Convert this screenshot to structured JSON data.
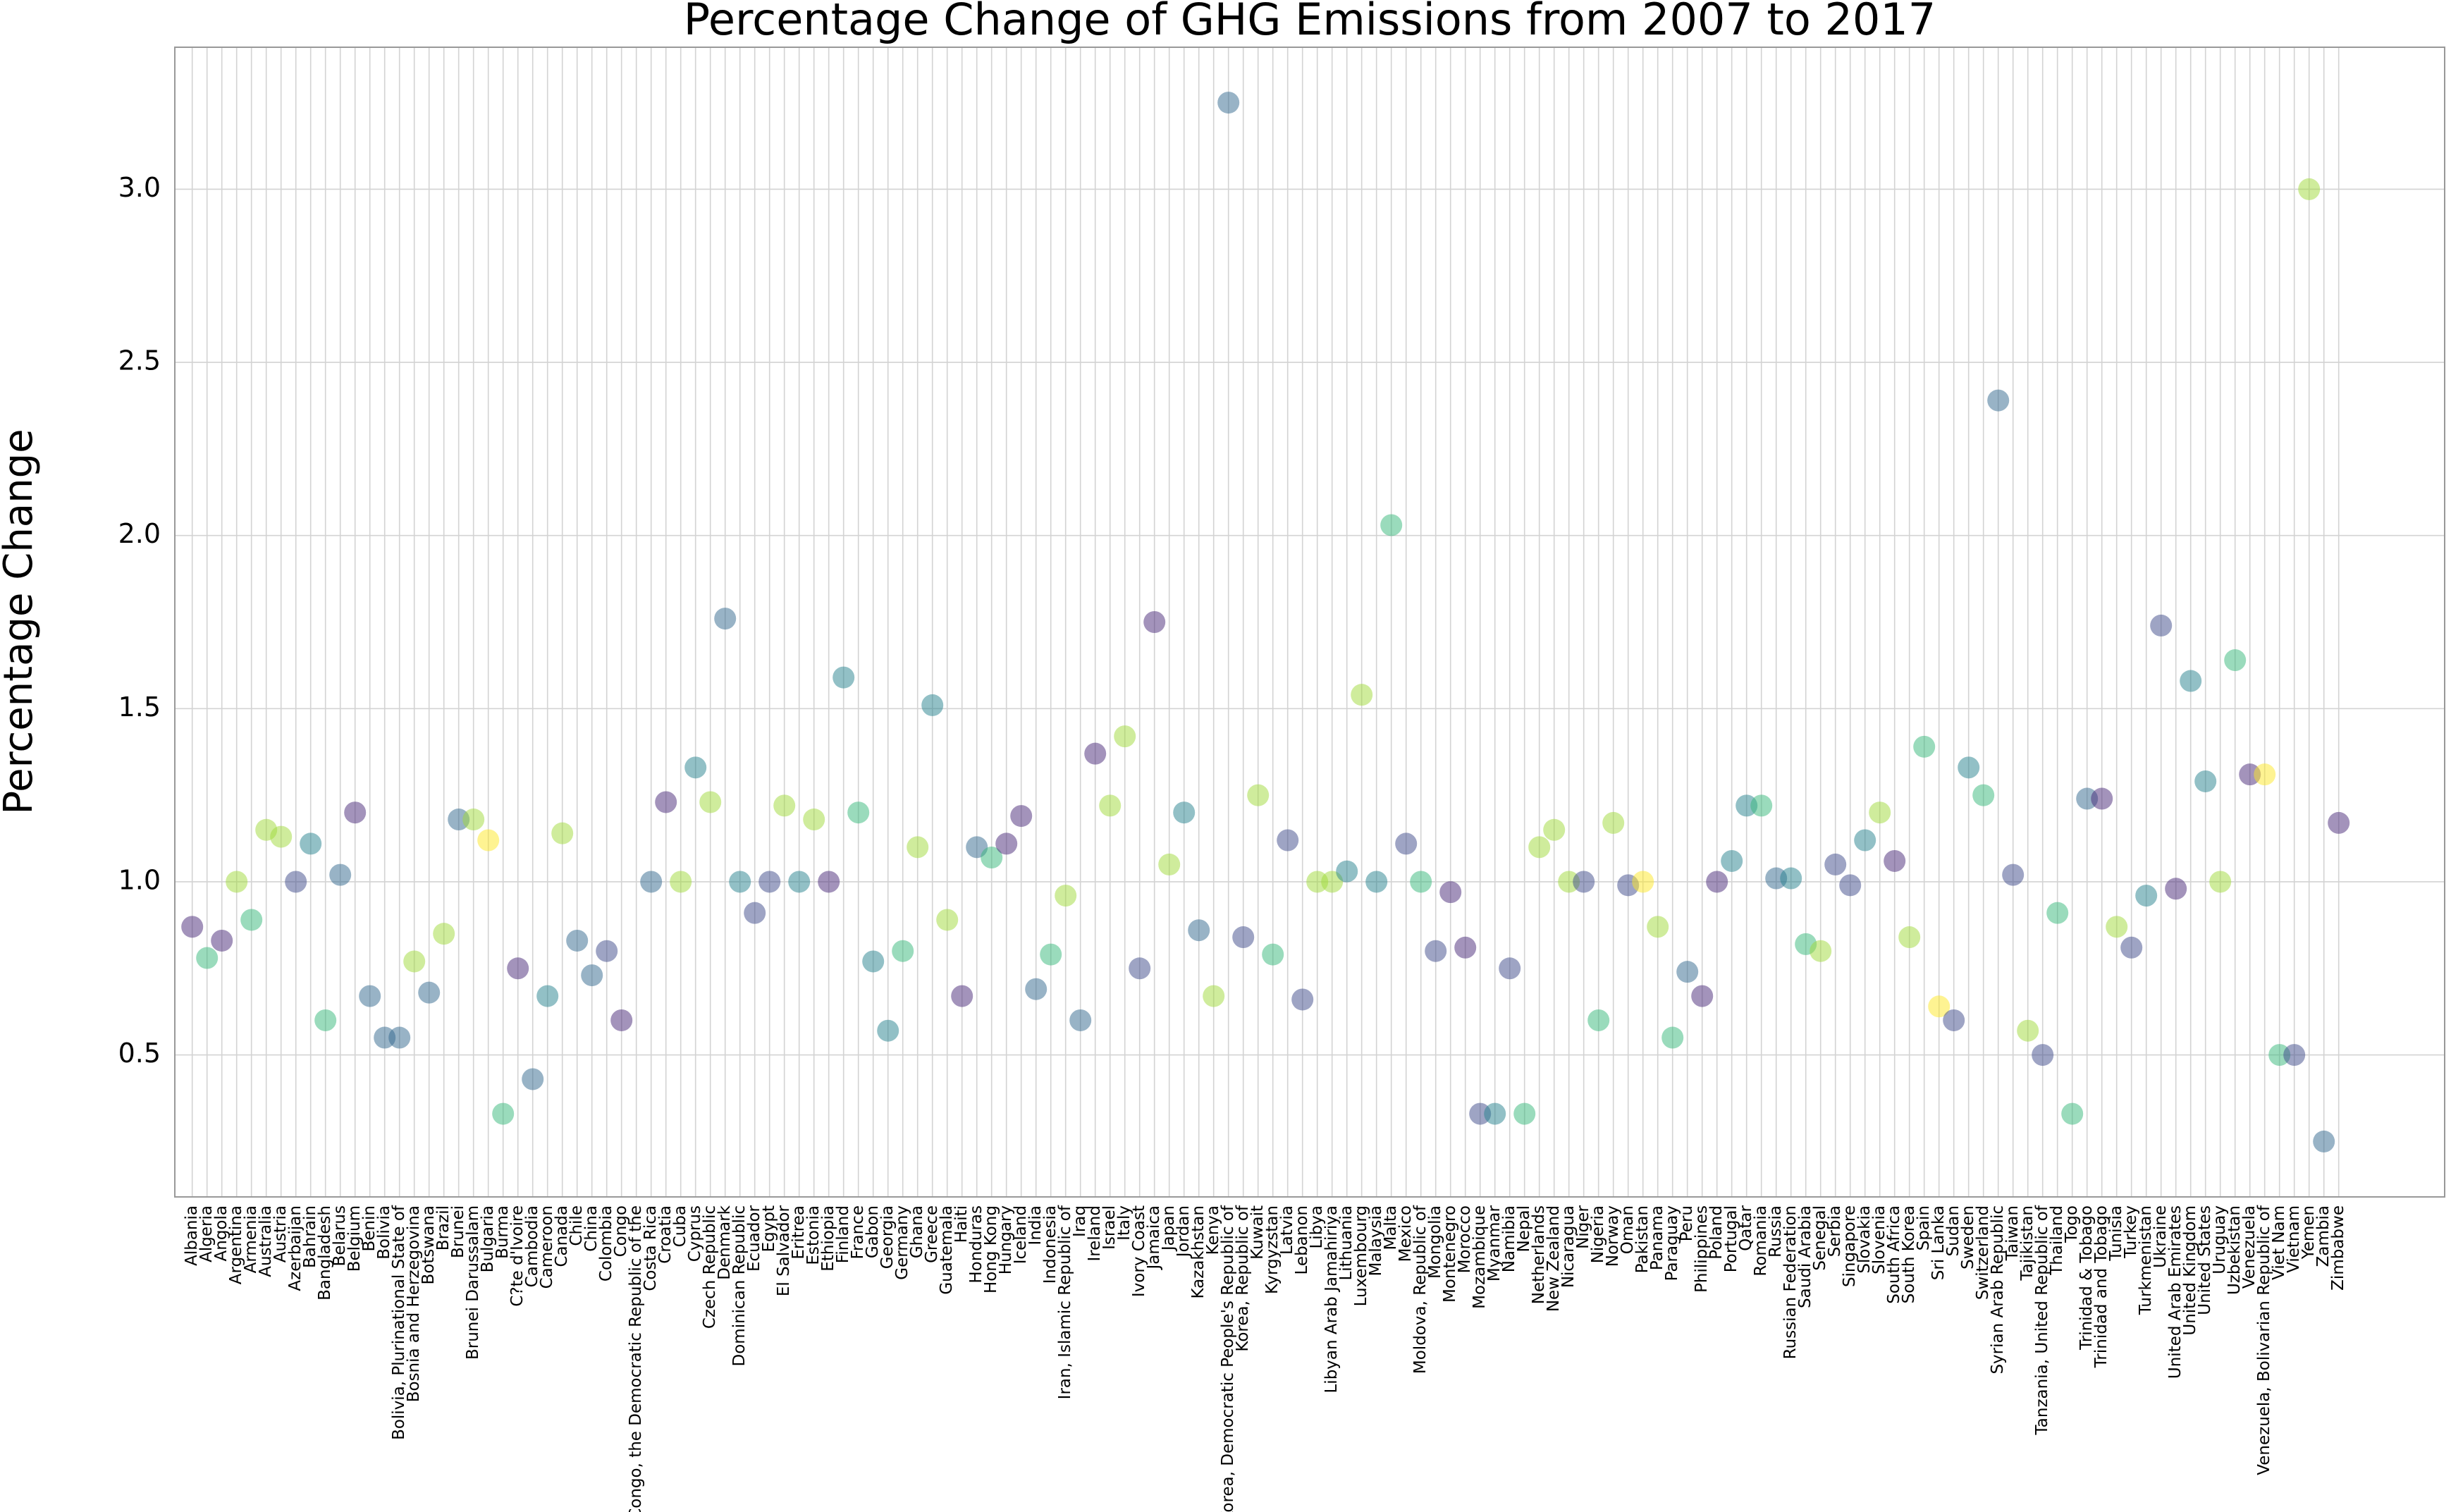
{
  "chart_data": {
    "type": "scatter",
    "title": "Percentage Change of GHG Emissions from 2007 to 2017",
    "y_label": "Percentage Change",
    "categories": [
      "Albania",
      "Algeria",
      "Angola",
      "Argentina",
      "Armenia",
      "Australia",
      "Austria",
      "Azerbaijan",
      "Bahrain",
      "Bangladesh",
      "Belarus",
      "Belgium",
      "Benin",
      "Bolivia",
      "Bolivia, Plurinational State of",
      "Bosnia and Herzegovina",
      "Botswana",
      "Brazil",
      "Brunei",
      "Brunei Darussalam",
      "Bulgaria",
      "Burma",
      "C?te d'Ivoire",
      "Cambodia",
      "Cameroon",
      "Canada",
      "Chile",
      "China",
      "Colombia",
      "Congo",
      "Congo, the Democratic Republic of the",
      "Costa Rica",
      "Croatia",
      "Cuba",
      "Cyprus",
      "Czech Republic",
      "Denmark",
      "Dominican Republic",
      "Ecuador",
      "Egypt",
      "El Salvador",
      "Eritrea",
      "Estonia",
      "Ethiopia",
      "Finland",
      "France",
      "Gabon",
      "Georgia",
      "Germany",
      "Ghana",
      "Greece",
      "Guatemala",
      "Haiti",
      "Honduras",
      "Hong Kong",
      "Hungary",
      "Iceland",
      "India",
      "Indonesia",
      "Iran, Islamic Republic of",
      "Iraq",
      "Ireland",
      "Israel",
      "Italy",
      "Ivory Coast",
      "Jamaica",
      "Japan",
      "Jordan",
      "Kazakhstan",
      "Kenya",
      "Korea, Democratic People's Republic of",
      "Korea, Republic of",
      "Kuwait",
      "Kyrgyzstan",
      "Latvia",
      "Lebanon",
      "Libya",
      "Libyan Arab Jamahiriya",
      "Lithuania",
      "Luxembourg",
      "Malaysia",
      "Malta",
      "Mexico",
      "Moldova, Republic of",
      "Mongolia",
      "Montenegro",
      "Morocco",
      "Mozambique",
      "Myanmar",
      "Namibia",
      "Nepal",
      "Netherlands",
      "New Zealand",
      "Nicaragua",
      "Niger",
      "Nigeria",
      "Norway",
      "Oman",
      "Pakistan",
      "Panama",
      "Paraguay",
      "Peru",
      "Philippines",
      "Poland",
      "Portugal",
      "Qatar",
      "Romania",
      "Russia",
      "Russian Federation",
      "Saudi Arabia",
      "Senegal",
      "Serbia",
      "Singapore",
      "Slovakia",
      "Slovenia",
      "South Africa",
      "South Korea",
      "Spain",
      "Sri Lanka",
      "Sudan",
      "Sweden",
      "Switzerland",
      "Syrian Arab Republic",
      "Taiwan",
      "Tajikistan",
      "Tanzania, United Republic of",
      "Thailand",
      "Togo",
      "Trinidad & Tobago",
      "Trinidad and Tobago",
      "Tunisia",
      "Turkey",
      "Turkmenistan",
      "Ukraine",
      "United Arab Emirates",
      "United Kingdom",
      "United States",
      "Uruguay",
      "Uzbekistan",
      "Venezuela",
      "Venezuela, Bolivarian Republic of",
      "Viet Nam",
      "Vietnam",
      "Yemen",
      "Zambia",
      "Zimbabwe"
    ],
    "values": [
      0.87,
      0.78,
      0.83,
      1.0,
      0.89,
      1.15,
      1.13,
      1.0,
      1.11,
      0.6,
      1.02,
      1.2,
      0.67,
      0.55,
      0.55,
      0.77,
      0.68,
      0.85,
      1.18,
      1.18,
      1.12,
      0.33,
      0.75,
      0.43,
      0.67,
      1.14,
      0.83,
      0.73,
      0.8,
      0.6,
      null,
      1.0,
      1.23,
      1.0,
      1.33,
      1.23,
      1.76,
      1.0,
      0.91,
      1.0,
      1.22,
      1.0,
      1.18,
      1.0,
      1.59,
      1.2,
      0.77,
      0.57,
      0.8,
      1.1,
      1.51,
      0.89,
      0.67,
      1.1,
      1.07,
      1.11,
      1.19,
      0.69,
      0.79,
      0.96,
      0.6,
      1.37,
      1.22,
      1.42,
      0.75,
      1.75,
      1.05,
      1.2,
      0.86,
      0.67,
      3.25,
      0.84,
      1.25,
      0.79,
      1.12,
      0.66,
      1.0,
      1.0,
      1.03,
      1.54,
      1.0,
      2.03,
      1.11,
      1.0,
      0.8,
      0.97,
      0.81,
      0.33,
      0.33,
      0.75,
      0.33,
      1.1,
      1.15,
      1.0,
      1.0,
      0.6,
      1.17,
      0.99,
      1.0,
      0.87,
      0.55,
      0.74,
      0.67,
      1.0,
      1.06,
      1.22,
      1.22,
      1.01,
      1.01,
      0.82,
      0.8,
      1.05,
      0.99,
      1.12,
      1.2,
      1.06,
      0.84,
      1.39,
      0.64,
      0.6,
      1.33,
      1.25,
      2.39,
      1.02,
      0.57,
      0.5,
      0.91,
      0.33,
      1.24,
      1.24,
      0.87,
      0.81,
      0.96,
      1.74,
      0.98,
      1.58,
      1.29,
      1.0,
      1.64,
      1.31,
      1.31,
      0.5,
      0.5,
      3.0,
      0.25,
      1.17
    ],
    "colors": [
      "#482878",
      "#35b779",
      "#482878",
      "#a0da39",
      "#35b779",
      "#a0da39",
      "#a0da39",
      "#3e4989",
      "#26828e",
      "#35b779",
      "#31688e",
      "#482878",
      "#31688e",
      "#31688e",
      "#31688e",
      "#a0da39",
      "#31688e",
      "#a0da39",
      "#31688e",
      "#a0da39",
      "#fde725",
      "#35b779",
      "#482878",
      "#31688e",
      "#26828e",
      "#a0da39",
      "#31688e",
      "#31688e",
      "#3e4989",
      "#482878",
      "#31688e",
      "#31688e",
      "#482878",
      "#a0da39",
      "#26828e",
      "#a0da39",
      "#31688e",
      "#26828e",
      "#3e4989",
      "#3e4989",
      "#a0da39",
      "#26828e",
      "#a0da39",
      "#482878",
      "#26828e",
      "#35b779",
      "#26828e",
      "#26828e",
      "#35b779",
      "#a0da39",
      "#26828e",
      "#a0da39",
      "#482878",
      "#31688e",
      "#35b779",
      "#482878",
      "#482878",
      "#31688e",
      "#35b779",
      "#a0da39",
      "#31688e",
      "#482878",
      "#a0da39",
      "#a0da39",
      "#3e4989",
      "#482878",
      "#a0da39",
      "#26828e",
      "#31688e",
      "#a0da39",
      "#31688e",
      "#3e4989",
      "#a0da39",
      "#35b779",
      "#3e4989",
      "#3e4989",
      "#a0da39",
      "#a0da39",
      "#26828e",
      "#a0da39",
      "#26828e",
      "#35b779",
      "#3e4989",
      "#35b779",
      "#3e4989",
      "#482878",
      "#482878",
      "#3e4989",
      "#26828e",
      "#3e4989",
      "#35b779",
      "#a0da39",
      "#a0da39",
      "#a0da39",
      "#3e4989",
      "#35b779",
      "#a0da39",
      "#3e4989",
      "#fde725",
      "#a0da39",
      "#35b779",
      "#31688e",
      "#482878",
      "#482878",
      "#26828e",
      "#26828e",
      "#35b779",
      "#31688e",
      "#26828e",
      "#35b779",
      "#a0da39",
      "#3e4989",
      "#3e4989",
      "#26828e",
      "#a0da39",
      "#482878",
      "#a0da39",
      "#35b779",
      "#fde725",
      "#3e4989",
      "#26828e",
      "#35b779",
      "#31688e",
      "#3e4989",
      "#a0da39",
      "#3e4989",
      "#35b779",
      "#35b779",
      "#31688e",
      "#482878",
      "#a0da39",
      "#3e4989",
      "#26828e",
      "#3e4989",
      "#482878",
      "#26828e",
      "#26828e",
      "#a0da39",
      "#35b779",
      "#482878",
      "#fde725",
      "#35b779",
      "#3e4989",
      "#a0da39",
      "#31688e",
      "#482878"
    ],
    "alpha": 0.5,
    "ylim": [
      0.09,
      3.41
    ],
    "yticks": [
      0.5,
      {
        "value": 1,
        "label": "1.0"
      },
      1.5,
      {
        "value": 2,
        "label": "2.0"
      },
      2.5,
      {
        "value": 3,
        "label": "3.0"
      }
    ],
    "grid": true
  }
}
